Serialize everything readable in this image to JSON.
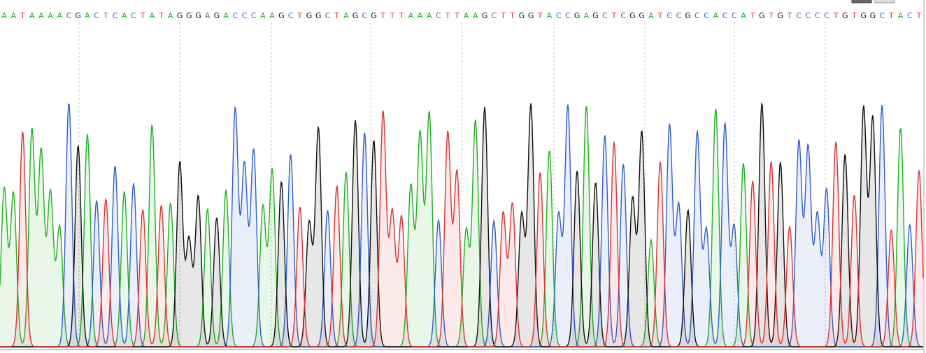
{
  "sequence": {
    "bases": [
      "A",
      "A",
      "T",
      "A",
      "A",
      "A",
      "A",
      "C",
      "G",
      "A",
      "C",
      "T",
      "C",
      "A",
      "C",
      "T",
      "A",
      "T",
      "A",
      "G",
      "G",
      "G",
      "A",
      "G",
      "A",
      "C",
      "C",
      "C",
      "A",
      "A",
      "G",
      "C",
      "T",
      "G",
      "G",
      "C",
      "T",
      "A",
      "G",
      "C",
      "G",
      "T",
      "T",
      "T",
      "A",
      "A",
      "A",
      "C",
      "T",
      "T",
      "A",
      "A",
      "G",
      "C",
      "T",
      "T",
      "G",
      "G",
      "T",
      "A",
      "C",
      "C",
      "G",
      "A",
      "G",
      "C",
      "T",
      "C",
      "G",
      "G",
      "A",
      "T",
      "C",
      "C",
      "G",
      "C",
      "C",
      "A",
      "C",
      "C",
      "A",
      "T",
      "G",
      "T",
      "G",
      "T",
      "C",
      "C",
      "C",
      "C",
      "T",
      "G",
      "T",
      "G",
      "G",
      "C",
      "T",
      "A",
      "C",
      "T"
    ],
    "base_colors": {
      "A": "#22b022",
      "C": "#2f5fd0",
      "G": "#111111",
      "T": "#e03232"
    }
  }
}
